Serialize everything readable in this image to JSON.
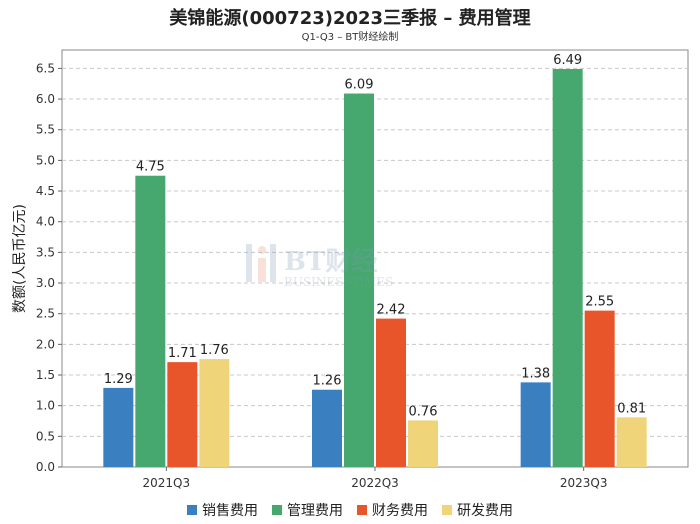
{
  "header": {
    "title": "美锦能源(000723)2023三季报 – 费用管理",
    "subtitle": "Q1-Q3 – BT财经绘制"
  },
  "watermark": {
    "main": "BT财经",
    "sub": "BUSINESSTIMES"
  },
  "chart_data": {
    "type": "bar",
    "categories": [
      "2021Q3",
      "2022Q3",
      "2023Q3"
    ],
    "series": [
      {
        "name": "销售费用",
        "color": "#3a7fbf",
        "values": [
          1.29,
          1.26,
          1.38
        ]
      },
      {
        "name": "管理费用",
        "color": "#46a86f",
        "values": [
          4.75,
          6.09,
          6.49
        ]
      },
      {
        "name": "财务费用",
        "color": "#e9552a",
        "values": [
          1.71,
          2.42,
          2.55
        ]
      },
      {
        "name": "研发费用",
        "color": "#efd47a",
        "values": [
          1.76,
          0.76,
          0.81
        ]
      }
    ],
    "ylabel": "数额(人民币亿元)",
    "ylim": [
      0,
      6.8
    ],
    "yticks": [
      "0.0",
      "0.5",
      "1.0",
      "1.5",
      "2.0",
      "2.5",
      "3.0",
      "3.5",
      "4.0",
      "4.5",
      "5.0",
      "5.5",
      "6.0",
      "6.5"
    ],
    "grid": true,
    "legend_position": "bottom"
  }
}
